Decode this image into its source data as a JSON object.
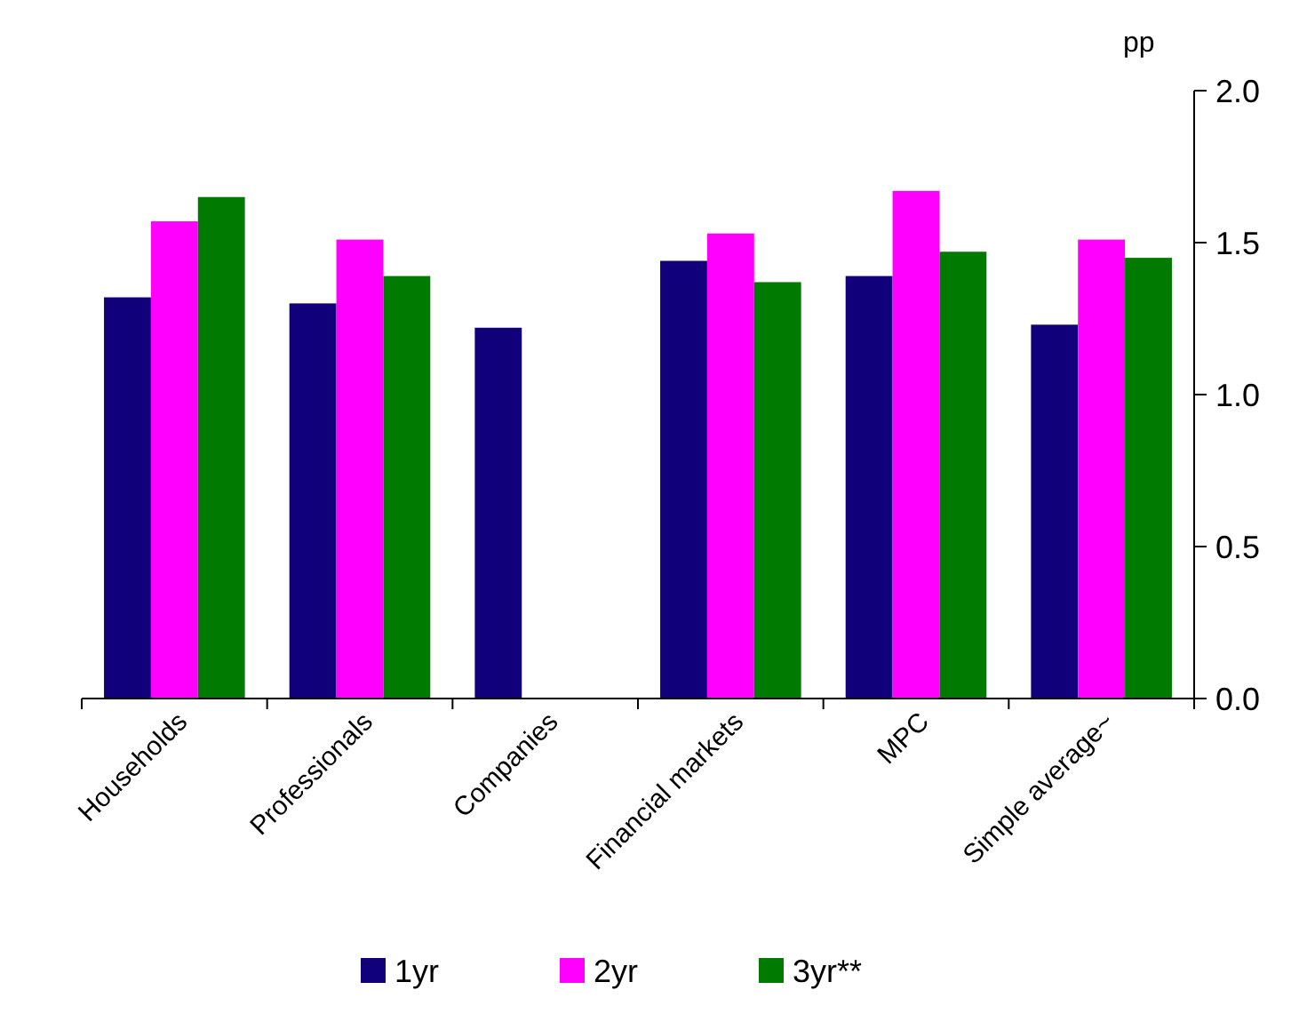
{
  "chart_data": {
    "type": "bar",
    "ylabel": "pp",
    "categories": [
      "Households",
      "Professionals",
      "Companies",
      "Financial markets",
      "MPC",
      "Simple average~"
    ],
    "series": [
      {
        "name": "1yr",
        "color": "#10007a",
        "values": [
          1.32,
          1.3,
          1.22,
          1.44,
          1.39,
          1.23
        ]
      },
      {
        "name": "2yr",
        "color": "#ff00ff",
        "values": [
          1.57,
          1.51,
          null,
          1.53,
          1.67,
          1.51
        ]
      },
      {
        "name": "3yr**",
        "color": "#007a00",
        "values": [
          1.65,
          1.39,
          null,
          1.37,
          1.47,
          1.45
        ]
      }
    ],
    "ylim": [
      0,
      2
    ],
    "yticks": [
      {
        "value": 0,
        "label": "0.0"
      },
      {
        "value": 0.5,
        "label": "0.5"
      },
      {
        "value": 1,
        "label": "1.0"
      },
      {
        "value": 1.5,
        "label": "1.5"
      },
      {
        "value": 2,
        "label": "2.0"
      }
    ],
    "grid": false,
    "legend": "bottom"
  }
}
